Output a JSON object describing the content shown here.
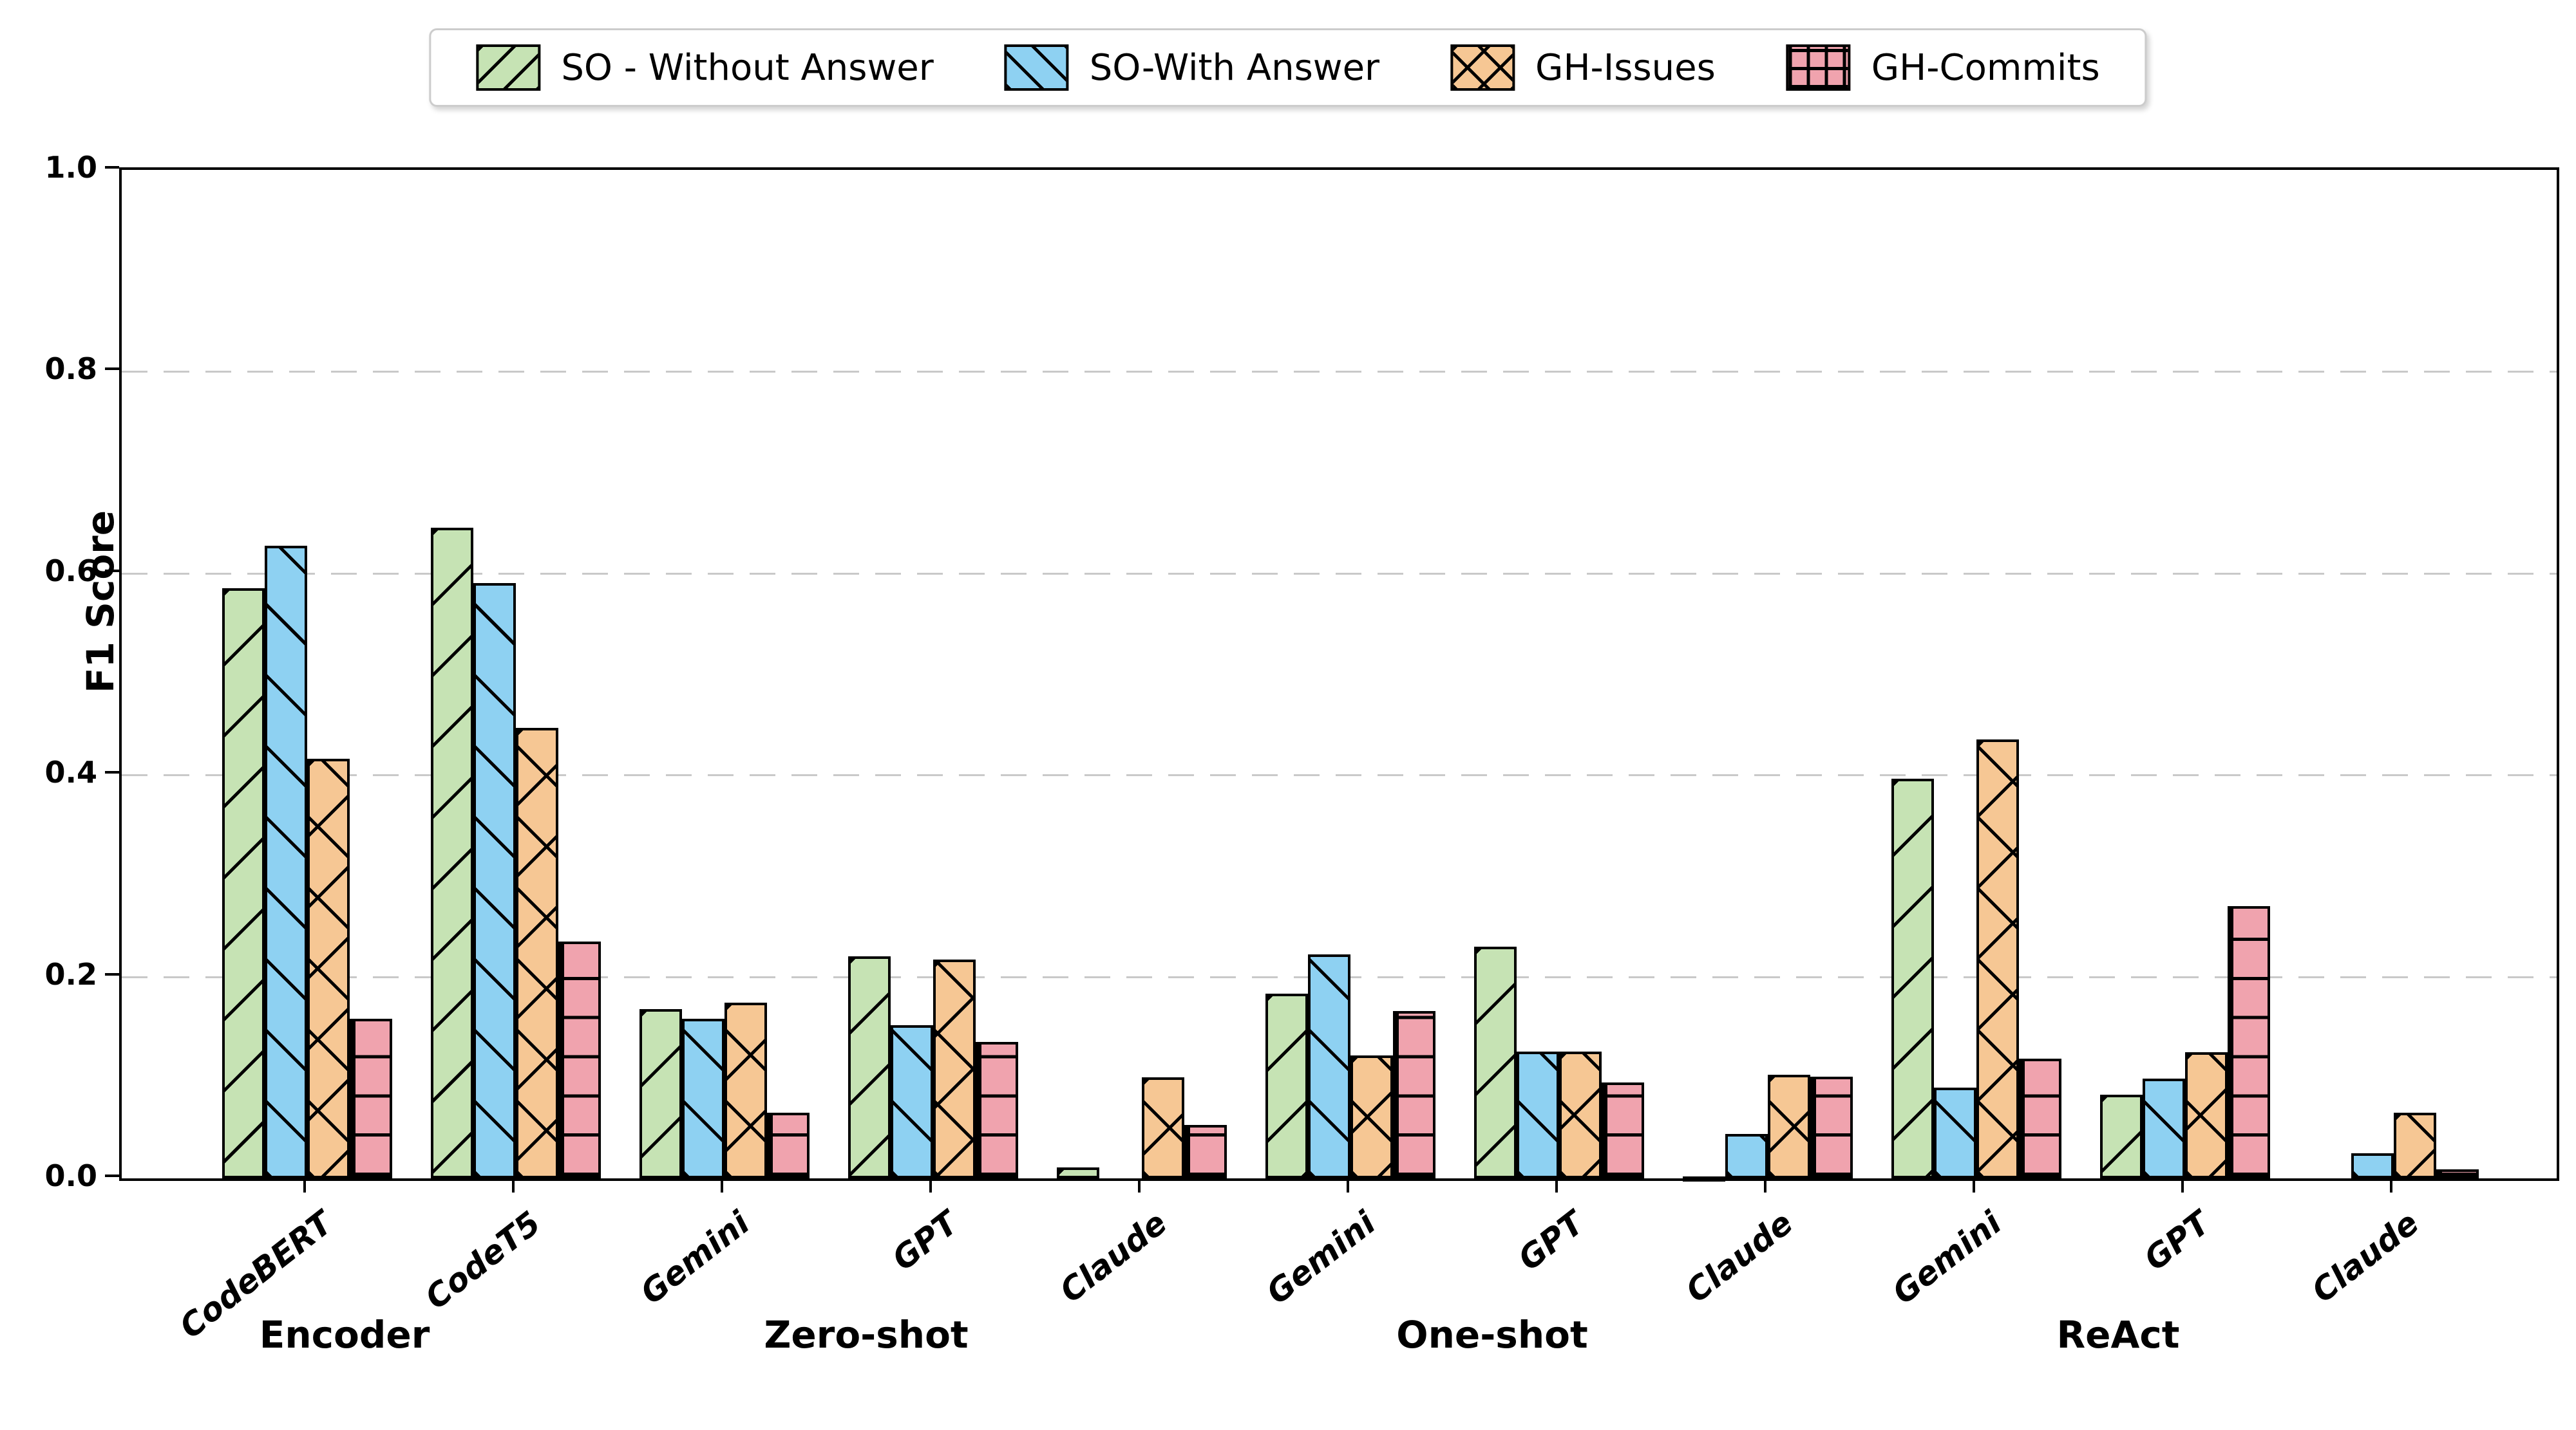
{
  "figure": {
    "background_color": "#ffffff",
    "axis_color": "#000000",
    "grid_color": "#c9c9c9"
  },
  "chart_data": {
    "type": "bar",
    "title": "",
    "xlabel": "",
    "ylabel": "F1 Score",
    "ylim": [
      0.0,
      1.0
    ],
    "yticks": [
      "0.0",
      "0.2",
      "0.4",
      "0.6",
      "0.8",
      "1.0"
    ],
    "grid": "horizontal dashed gridlines at 0.2, 0.4, 0.6, 0.8",
    "legend_position": "top center, horizontal, boxed",
    "bar_style": "black edges with hatch patterns",
    "categories": [
      "CodeBERT",
      "CodeT5",
      "Gemini",
      "GPT",
      "Claude",
      "Gemini",
      "GPT",
      "Claude",
      "Gemini",
      "GPT",
      "Claude"
    ],
    "sections": [
      {
        "label": "Encoder",
        "start": 0,
        "end": 1
      },
      {
        "label": "Zero-shot",
        "start": 2,
        "end": 4
      },
      {
        "label": "One-shot",
        "start": 5,
        "end": 7
      },
      {
        "label": "ReAct",
        "start": 8,
        "end": 10
      }
    ],
    "series": [
      {
        "name": "SO - Without Answer",
        "color": "#c6e3b4",
        "hatch": "/",
        "values": [
          0.585,
          0.645,
          0.168,
          0.22,
          0.011,
          0.183,
          0.23,
          0.002,
          0.396,
          0.083,
          0.0
        ]
      },
      {
        "name": "SO-With Answer",
        "color": "#8ed1f2",
        "hatch": "\\",
        "values": [
          0.627,
          0.59,
          0.158,
          0.152,
          0.0,
          0.222,
          0.126,
          0.044,
          0.09,
          0.099,
          0.025
        ]
      },
      {
        "name": "GH-Issues",
        "color": "#f6c794",
        "hatch": "x",
        "values": [
          0.416,
          0.447,
          0.174,
          0.217,
          0.1,
          0.122,
          0.126,
          0.103,
          0.435,
          0.125,
          0.065
        ]
      },
      {
        "name": "GH-Commits",
        "color": "#f0a3ae",
        "hatch": "+",
        "values": [
          0.158,
          0.235,
          0.065,
          0.135,
          0.053,
          0.166,
          0.095,
          0.101,
          0.119,
          0.27,
          0.009
        ]
      }
    ]
  }
}
